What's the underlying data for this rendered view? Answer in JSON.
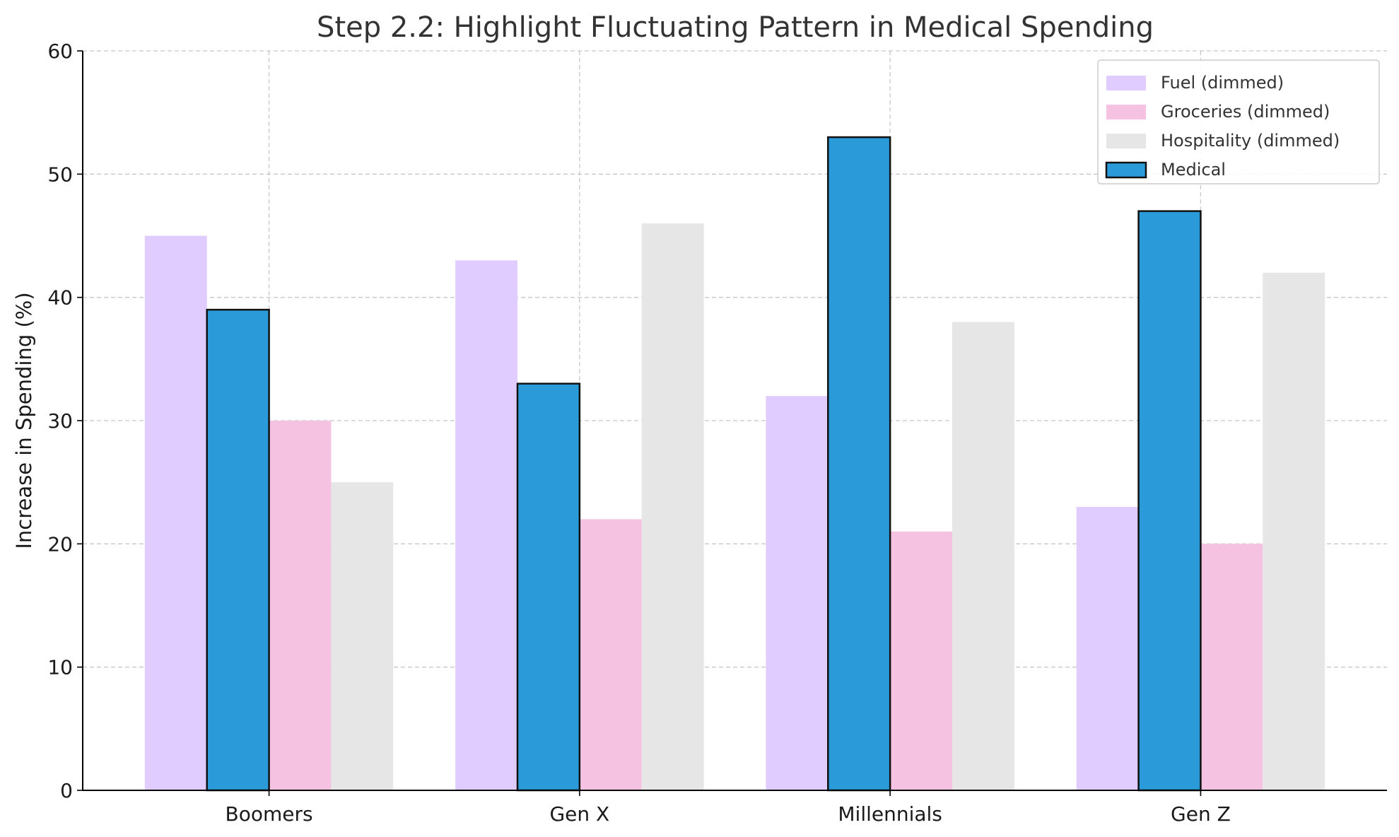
{
  "chart_data": {
    "type": "bar",
    "title": "Step 2.2: Highlight Fluctuating Pattern in Medical Spending",
    "xlabel": "",
    "ylabel": "Increase in Spending (%)",
    "categories": [
      "Boomers",
      "Gen X",
      "Millennials",
      "Gen Z"
    ],
    "ylim": [
      0,
      60
    ],
    "yticks": [
      0,
      10,
      20,
      30,
      40,
      50,
      60
    ],
    "grid": true,
    "legend_position": "top-right",
    "series": [
      {
        "name": "Fuel (dimmed)",
        "values": [
          45,
          43,
          32,
          23
        ],
        "color": "#e0ccff",
        "highlight": false
      },
      {
        "name": "Medical",
        "values": [
          39,
          33,
          53,
          47
        ],
        "color": "#2b9ad9",
        "highlight": true
      },
      {
        "name": "Groceries (dimmed)",
        "values": [
          30,
          22,
          21,
          20
        ],
        "color": "#f5c2e2",
        "highlight": false
      },
      {
        "name": "Hospitality (dimmed)",
        "values": [
          25,
          46,
          38,
          42
        ],
        "color": "#e6e6e6",
        "highlight": false
      }
    ],
    "legend_order": [
      "Fuel (dimmed)",
      "Groceries (dimmed)",
      "Hospitality (dimmed)",
      "Medical"
    ]
  }
}
